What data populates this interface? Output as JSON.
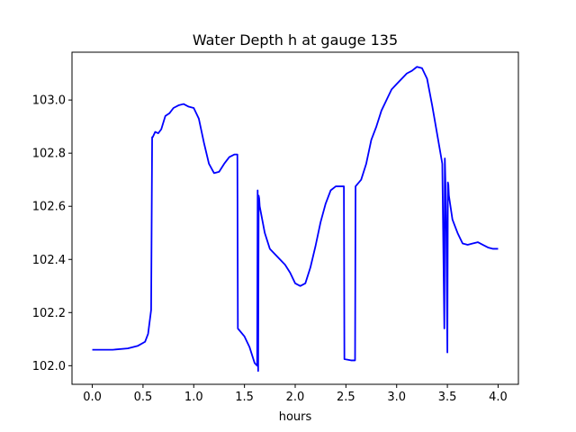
{
  "chart_data": {
    "type": "line",
    "title": "Water Depth h at gauge 135",
    "xlabel": "hours",
    "ylabel": "",
    "xlim": [
      -0.2,
      4.2
    ],
    "ylim": [
      101.93,
      103.18
    ],
    "grid": false,
    "x_ticks": [
      0.0,
      0.5,
      1.0,
      1.5,
      2.0,
      2.5,
      3.0,
      3.5,
      4.0
    ],
    "x_tick_labels": [
      "0.0",
      "0.5",
      "1.0",
      "1.5",
      "2.0",
      "2.5",
      "3.0",
      "3.5",
      "4.0"
    ],
    "y_ticks": [
      102.0,
      102.2,
      102.4,
      102.6,
      102.8,
      103.0
    ],
    "y_tick_labels": [
      "102.0",
      "102.2",
      "102.4",
      "102.6",
      "102.8",
      "103.0"
    ],
    "series": [
      {
        "color": "#0000ff",
        "x": [
          0.0,
          0.2,
          0.35,
          0.45,
          0.52,
          0.55,
          0.58,
          0.59,
          0.595,
          0.62,
          0.65,
          0.68,
          0.72,
          0.76,
          0.8,
          0.85,
          0.9,
          0.95,
          1.0,
          1.05,
          1.1,
          1.15,
          1.2,
          1.25,
          1.3,
          1.35,
          1.4,
          1.43,
          1.435,
          1.5,
          1.55,
          1.6,
          1.625,
          1.63,
          1.635,
          1.64,
          1.645,
          1.65,
          1.7,
          1.75,
          1.8,
          1.85,
          1.9,
          1.95,
          2.0,
          2.05,
          2.1,
          2.15,
          2.2,
          2.25,
          2.3,
          2.35,
          2.4,
          2.45,
          2.48,
          2.485,
          2.55,
          2.59,
          2.595,
          2.65,
          2.7,
          2.75,
          2.8,
          2.85,
          2.9,
          2.95,
          3.0,
          3.05,
          3.1,
          3.15,
          3.2,
          3.25,
          3.3,
          3.35,
          3.4,
          3.45,
          3.47,
          3.475,
          3.48,
          3.49,
          3.5,
          3.505,
          3.51,
          3.515,
          3.55,
          3.6,
          3.65,
          3.7,
          3.75,
          3.8,
          3.85,
          3.9,
          3.95,
          4.0
        ],
        "values": [
          102.06,
          102.06,
          102.065,
          102.075,
          102.09,
          102.12,
          102.21,
          102.86,
          102.86,
          102.88,
          102.875,
          102.89,
          102.94,
          102.95,
          102.97,
          102.98,
          102.985,
          102.975,
          102.97,
          102.93,
          102.84,
          102.76,
          102.725,
          102.73,
          102.76,
          102.785,
          102.795,
          102.795,
          102.14,
          102.11,
          102.07,
          102.01,
          102.0,
          102.66,
          101.98,
          102.64,
          102.63,
          102.6,
          102.5,
          102.44,
          102.42,
          102.4,
          102.38,
          102.35,
          102.31,
          102.3,
          102.31,
          102.37,
          102.45,
          102.54,
          102.61,
          102.66,
          102.675,
          102.675,
          102.675,
          102.025,
          102.02,
          102.02,
          102.675,
          102.7,
          102.76,
          102.85,
          102.9,
          102.96,
          103.0,
          103.04,
          103.06,
          103.08,
          103.1,
          103.11,
          103.125,
          103.12,
          103.08,
          102.98,
          102.87,
          102.76,
          102.14,
          102.78,
          102.7,
          102.5,
          102.05,
          102.69,
          102.68,
          102.64,
          102.55,
          102.5,
          102.46,
          102.455,
          102.46,
          102.465,
          102.455,
          102.445,
          102.44,
          102.44
        ]
      }
    ]
  }
}
